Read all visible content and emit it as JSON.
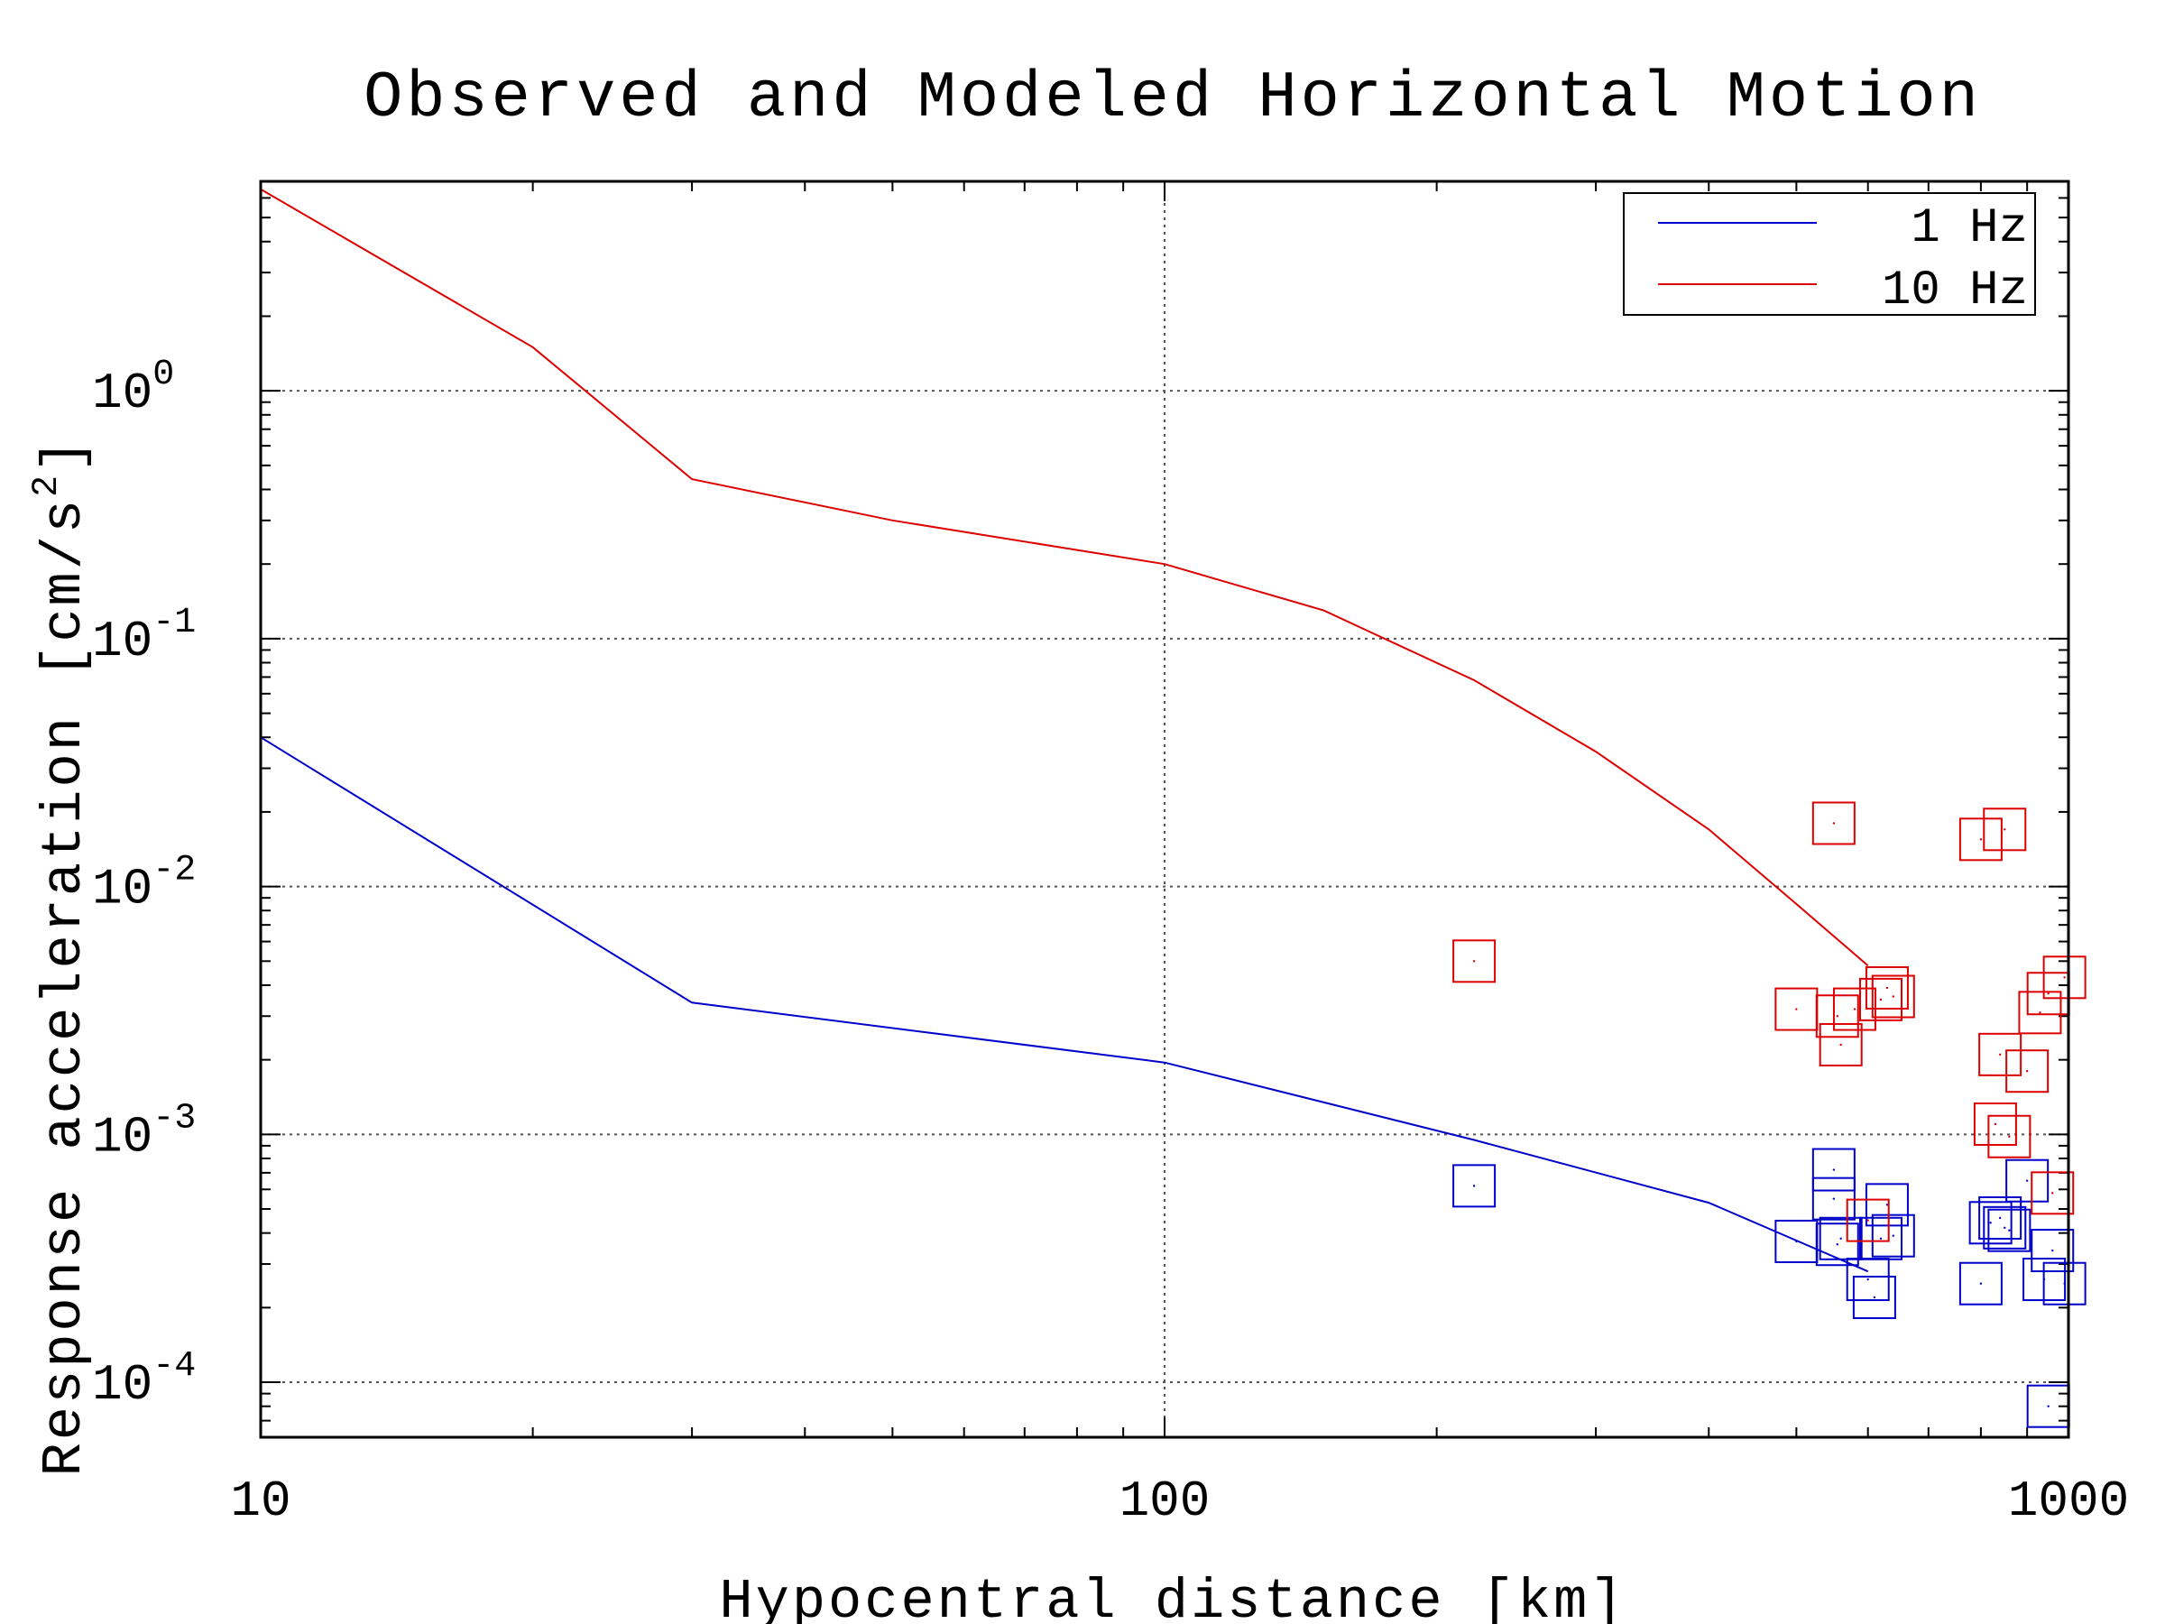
{
  "chart_data": {
    "type": "scatter",
    "title": "Observed and Modeled Horizontal Motion",
    "xlabel": "Hypocentral distance [km]",
    "ylabel_main": "Response acceleration [cm/s",
    "ylabel_exponent": "2",
    "ylabel_close": "]",
    "x_scale": "log",
    "y_scale": "log",
    "xlim": [
      10,
      1000
    ],
    "ylim": [
      6e-05,
      7
    ],
    "grid": true,
    "legend_position": "top-right",
    "x_ticks": [
      {
        "value": 10,
        "label": "10"
      },
      {
        "value": 100,
        "label": "100"
      },
      {
        "value": 1000,
        "label": "1000"
      }
    ],
    "y_ticks": [
      {
        "value": 1,
        "base": "10",
        "exp": "0"
      },
      {
        "value": 0.1,
        "base": "10",
        "exp": "-1"
      },
      {
        "value": 0.01,
        "base": "10",
        "exp": "-2"
      },
      {
        "value": 0.001,
        "base": "10",
        "exp": "-3"
      },
      {
        "value": 0.0001,
        "base": "10",
        "exp": "-4"
      }
    ],
    "series": [
      {
        "name": "1 Hz",
        "color": "#0000cc",
        "model": {
          "x": [
            10,
            30,
            100,
            220,
            400,
            600
          ],
          "y": [
            0.04,
            0.0034,
            0.00195,
            0.00095,
            0.00053,
            0.00028
          ]
        },
        "observed": {
          "x": [
            220,
            500,
            550,
            550,
            555,
            560,
            600,
            610,
            620,
            630,
            640,
            800,
            820,
            840,
            850,
            860,
            900,
            940,
            950,
            960,
            990
          ],
          "y": [
            0.00062,
            0.00037,
            0.00072,
            0.00055,
            0.00036,
            0.00038,
            0.00026,
            0.00022,
            0.00038,
            0.00052,
            0.00039,
            0.00025,
            0.00044,
            0.00046,
            0.00042,
            0.00041,
            0.00065,
            0.00026,
            8e-05,
            0.00034,
            0.00025
          ]
        }
      },
      {
        "name": "10 Hz",
        "color": "#dd0000",
        "model": {
          "x": [
            10,
            20,
            30,
            50,
            100,
            150,
            220,
            300,
            400,
            500,
            600
          ],
          "y": [
            6.5,
            1.5,
            0.44,
            0.3,
            0.2,
            0.13,
            0.068,
            0.035,
            0.017,
            0.0085,
            0.0048
          ]
        },
        "observed": {
          "x": [
            220,
            500,
            550,
            555,
            560,
            580,
            600,
            620,
            630,
            640,
            800,
            830,
            840,
            850,
            860,
            900,
            930,
            950,
            960,
            990
          ],
          "y": [
            0.005,
            0.0032,
            0.018,
            0.003,
            0.0023,
            0.0032,
            0.00045,
            0.0035,
            0.0039,
            0.0036,
            0.0155,
            0.0011,
            0.0021,
            0.017,
            0.00098,
            0.0018,
            0.0031,
            0.0037,
            0.00058,
            0.0043
          ]
        }
      }
    ]
  }
}
